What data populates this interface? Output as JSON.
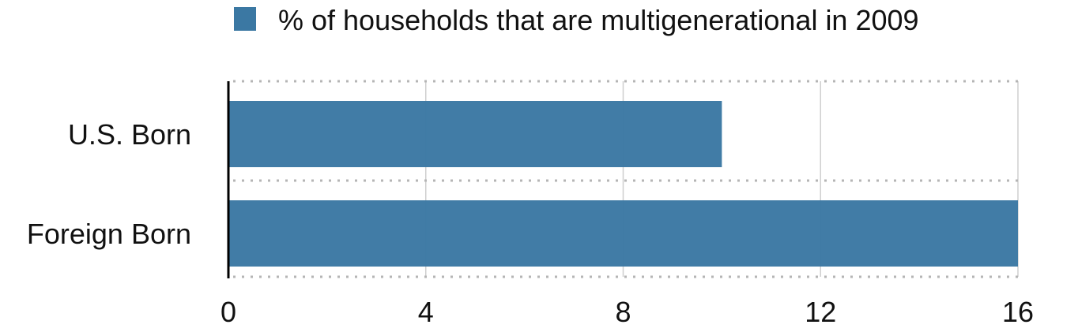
{
  "chart_data": {
    "type": "bar",
    "orientation": "horizontal",
    "categories": [
      "U.S. Born",
      "Foreign Born"
    ],
    "series": [
      {
        "name": "% of households that are multigenerational in 2009",
        "values": [
          10,
          16
        ],
        "color": "#3b78a3"
      }
    ],
    "title": "",
    "xlabel": "",
    "ylabel": "",
    "xlim": [
      0,
      16
    ],
    "x_ticks": [
      0,
      4,
      8,
      12,
      16
    ],
    "grid": true,
    "legend_position": "top"
  }
}
